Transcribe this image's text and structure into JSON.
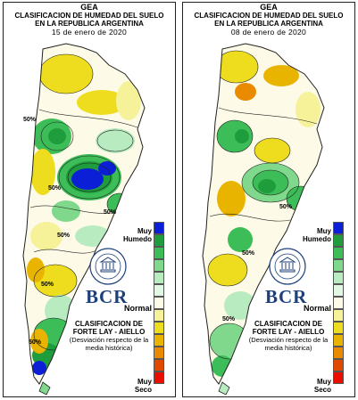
{
  "panels": [
    {
      "id": "left",
      "header": {
        "org": "GEA",
        "title1": "CLASIFICACION DE HUMEDAD DEL SUELO",
        "title2": "EN LA REPUBLICA ARGENTINA",
        "date": "15 de enero de 2020"
      },
      "contour_labels": [
        "50%",
        "50%",
        "50%",
        "50%",
        "50%",
        "50%"
      ]
    },
    {
      "id": "right",
      "header": {
        "org": "GEA",
        "title1": "CLASIFICACION DE HUMEDAD DEL SUELO",
        "title2": "EN LA REPUBLICA ARGENTINA",
        "date": "08 de enero de 2020"
      },
      "contour_labels": [
        "50%",
        "50%",
        "50%"
      ]
    }
  ],
  "legend": {
    "top_label": "Muy Humedo",
    "middle_label": "Normal",
    "bottom_label": "Muy Seco",
    "colors": [
      "#0b1fd6",
      "#1f9c3c",
      "#3cbd58",
      "#7fd88b",
      "#b8ecc0",
      "#e2f8e4",
      "#fdfbe7",
      "#f6f29a",
      "#eedc1e",
      "#e9b400",
      "#e98a00",
      "#e04a00",
      "#e80f00"
    ]
  },
  "branding": {
    "logo_text": "BCR",
    "seal_text": "BOLSA DE COMERCIO DE ROSARIO",
    "method_title": "CLASIFICACION DE FORTE LAY - AIELLO",
    "method_note": "(Desviación respecto de la media histórica)"
  },
  "colors": {
    "outline": "#222222",
    "brand_blue": "#1d3f7a"
  }
}
